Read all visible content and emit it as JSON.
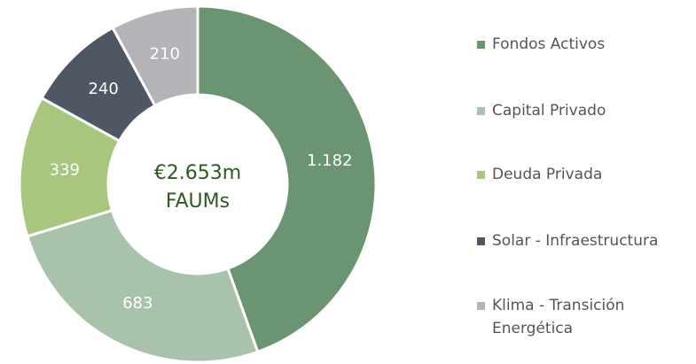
{
  "chart_data": {
    "type": "donut",
    "center_label": [
      "€2.653m",
      "FAUMs"
    ],
    "categories": [
      "Fondos Activos",
      "Capital Privado",
      "Deuda Privada",
      "Solar - Infraestructura",
      "Klima - Transición Energética"
    ],
    "values": [
      1182,
      683,
      339,
      240,
      210
    ],
    "value_labels": [
      "1.182",
      "683",
      "339",
      "240",
      "210"
    ],
    "colors": [
      "#6b9472",
      "#a9c2ac",
      "#a9c67f",
      "#4e5763",
      "#b3b3b8"
    ],
    "legend": "right"
  }
}
